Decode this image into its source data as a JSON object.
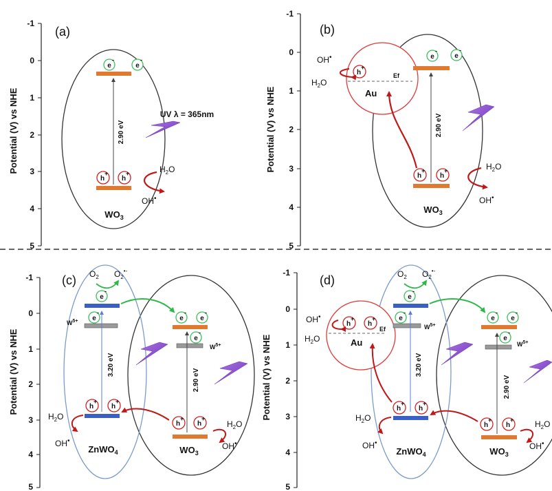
{
  "y_axis": {
    "label": "Potential (V) vs NHE",
    "ticks": [
      "-1",
      "0",
      "1",
      "2",
      "3",
      "4",
      "5"
    ]
  },
  "electron": "e",
  "hole": "h",
  "panels": {
    "a": {
      "label": "(a)",
      "material": "WO",
      "material_sub": "3",
      "gap": "2.90 eV",
      "uv": "UV λ = 365nm",
      "h2o": "H",
      "h2o_sub": "2",
      "h2o_end": "O",
      "oh": "OH"
    },
    "b": {
      "label": "(b)",
      "material": "WO",
      "material_sub": "3",
      "gap": "2.90 eV",
      "au": "Au",
      "ef": "Ef",
      "h2o": "H",
      "h2o_sub": "2",
      "h2o_end": "O",
      "oh": "OH"
    },
    "c": {
      "label": "(c)",
      "zn_material": "ZnWO",
      "zn_sub": "4",
      "zn_gap": "3.20 eV",
      "wo_material": "WO",
      "wo_sub": "3",
      "wo_gap": "2.90 eV",
      "w5": "W",
      "w5_sup": "5+",
      "o2": "O",
      "o2_sub": "2",
      "o2r": "O",
      "o2r_sub": "2",
      "o2r_sup": "•-",
      "h2o": "H",
      "h2o_sub": "2",
      "h2o_end": "O",
      "oh": "OH"
    },
    "d": {
      "label": "(d)",
      "zn_material": "ZnWO",
      "zn_sub": "4",
      "zn_gap": "3.20 eV",
      "wo_material": "WO",
      "wo_sub": "3",
      "wo_gap": "2.90 eV",
      "au": "Au",
      "ef": "Ef",
      "w5": "W",
      "w5_sup": "5+",
      "o2": "O",
      "o2_sub": "2",
      "o2r": "O",
      "o2r_sub": "2",
      "o2r_sup": "•-",
      "h2o": "H",
      "h2o_sub": "2",
      "h2o_end": "O",
      "oh": "OH"
    }
  },
  "colors": {
    "cb_wo3": "#e07a30",
    "band_zn": "#3a5fc7",
    "w5_level": "#9a9a9a",
    "hole_ring": "#d42020",
    "electron_ring": "#3bbf5a",
    "arrow_red": "#c01818",
    "arrow_green": "#2eb84a",
    "au_ring": "#e03a3a",
    "lightning": "#8a4fc9",
    "zn_ellipse": "#7b9bcc",
    "wo_ellipse": "#333333"
  }
}
